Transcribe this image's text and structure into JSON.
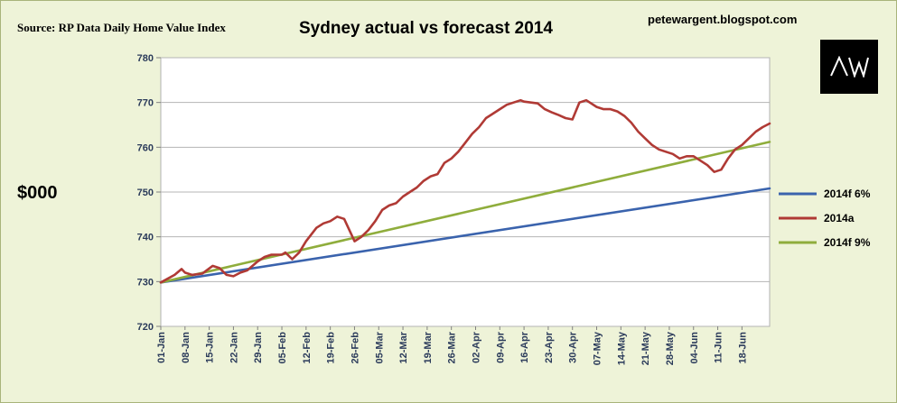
{
  "source_text": "Source: RP Data Daily Home Value Index",
  "website": "petewargent.blogspot.com",
  "logo_text": "AW",
  "chart_data": {
    "type": "line",
    "title": "Sydney actual vs forecast 2014",
    "ylabel": "$000",
    "xlabel": "",
    "ylim": [
      720,
      780
    ],
    "yticks": [
      720,
      730,
      740,
      750,
      760,
      770,
      780
    ],
    "xlim": [
      0,
      176
    ],
    "x_tick_labels": [
      "01-Jan",
      "08-Jan",
      "15-Jan",
      "22-Jan",
      "29-Jan",
      "05-Feb",
      "12-Feb",
      "19-Feb",
      "26-Feb",
      "05-Mar",
      "12-Mar",
      "19-Mar",
      "26-Mar",
      "02-Apr",
      "09-Apr",
      "16-Apr",
      "23-Apr",
      "30-Apr",
      "07-May",
      "14-May",
      "21-May",
      "28-May",
      "04-Jun",
      "11-Jun",
      "18-Jun"
    ],
    "x_tick_positions": [
      0,
      7,
      14,
      21,
      28,
      35,
      42,
      49,
      56,
      63,
      70,
      77,
      84,
      91,
      98,
      105,
      112,
      119,
      126,
      133,
      140,
      147,
      154,
      161,
      168
    ],
    "grid": true,
    "legend_position": "right",
    "colors": {
      "2014f 6%": "#3a63ad",
      "2014a": "#b03a35",
      "2014f 9%": "#8fad3c"
    },
    "series": [
      {
        "name": "2014f 6%",
        "x": [
          0,
          176
        ],
        "y": [
          729.8,
          750.8
        ]
      },
      {
        "name": "2014f 9%",
        "x": [
          0,
          176
        ],
        "y": [
          729.8,
          761.2
        ]
      },
      {
        "name": "2014a",
        "x": [
          0,
          4,
          6,
          7,
          9,
          12,
          15,
          17,
          19,
          21,
          23,
          25,
          28,
          30,
          32,
          35,
          36,
          38,
          40,
          42,
          45,
          47,
          49,
          51,
          53,
          56,
          58,
          60,
          62,
          64,
          66,
          68,
          70,
          72,
          74,
          76,
          78,
          80,
          82,
          84,
          86,
          88,
          90,
          92,
          94,
          96,
          98,
          100,
          102,
          104,
          105,
          107,
          109,
          111,
          113,
          115,
          117,
          119,
          121,
          123,
          124,
          126,
          128,
          130,
          132,
          134,
          136,
          138,
          140,
          142,
          144,
          146,
          148,
          150,
          152,
          154,
          156,
          158,
          160,
          162,
          164,
          166,
          168,
          170,
          172,
          174,
          176
        ],
        "y": [
          729.8,
          731.5,
          732.8,
          732.0,
          731.5,
          731.8,
          733.5,
          733.0,
          731.5,
          731.2,
          732.0,
          732.5,
          734.5,
          735.5,
          736.0,
          736.0,
          736.5,
          735.0,
          736.5,
          739.0,
          742.0,
          743.0,
          743.5,
          744.5,
          744.0,
          739.0,
          740.0,
          741.5,
          743.5,
          746.0,
          747.0,
          747.5,
          749.0,
          750.0,
          751.0,
          752.5,
          753.5,
          754.0,
          756.5,
          757.5,
          759.0,
          761.0,
          763.0,
          764.5,
          766.5,
          767.5,
          768.5,
          769.5,
          770.0,
          770.5,
          770.2,
          770.0,
          769.8,
          768.5,
          767.8,
          767.2,
          766.5,
          766.2,
          770.0,
          770.5,
          770.0,
          769.0,
          768.5,
          768.5,
          768.0,
          767.0,
          765.5,
          763.5,
          762.0,
          760.5,
          759.5,
          759.0,
          758.5,
          757.5,
          758.0,
          758.0,
          757.0,
          756.0,
          754.5,
          755.0,
          757.5,
          759.5,
          760.5,
          762.0,
          763.5,
          764.5,
          765.3
        ]
      }
    ]
  }
}
